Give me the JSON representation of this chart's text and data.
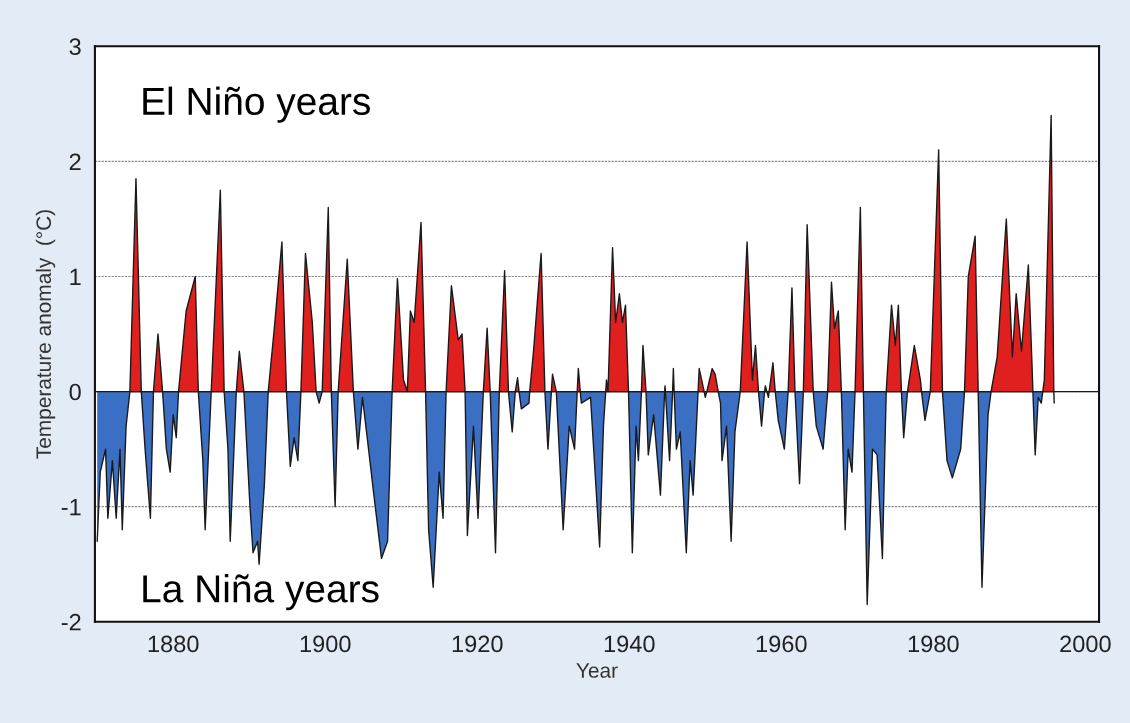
{
  "chart_data": {
    "type": "area",
    "xlabel": "Year",
    "ylabel": "Temperature anomaly  (°C)",
    "annotations": [
      "El Niño years",
      "La Niña years"
    ],
    "xlim": [
      1869.7,
      2001.8
    ],
    "ylim": [
      -2,
      3
    ],
    "xticks": [
      1880,
      1900,
      1920,
      1940,
      1960,
      1980,
      2000
    ],
    "yticks": [
      -2,
      -1,
      0,
      1,
      2,
      3
    ],
    "grid": "y",
    "series": [
      {
        "color": "#e0201e",
        "x": [
          1874.3,
          1875.1,
          1875.8,
          1877.4,
          1878.0,
          1878.6,
          1880.7,
          1881.7,
          1882.9,
          1883.3,
          1885.0,
          1886.2,
          1886.7,
          1888.3,
          1888.7,
          1889.3,
          1892.5,
          1893.3,
          1894.3,
          1894.9,
          1896.8,
          1897.4,
          1898.3,
          1898.8,
          1899.6,
          1900.4,
          1900.8,
          1901.7,
          1902.9,
          1903.7,
          1908.8,
          1909.5,
          1910.3,
          1910.8,
          1911.2,
          1911.7,
          1912.6,
          1913.2,
          1915.9,
          1916.6,
          1917.5,
          1918.0,
          1918.4,
          1920.8,
          1921.3,
          1921.7,
          1922.9,
          1923.6,
          1924.1,
          1925.0,
          1925.3,
          1925.5,
          1926.9,
          1927.4,
          1928.4,
          1928.9,
          1929.75,
          1929.9,
          1930.4,
          1933.15,
          1933.3,
          1933.55,
          1936.9,
          1937.0,
          1937.2,
          1937.8,
          1938.2,
          1938.7,
          1939.1,
          1939.5,
          1939.9,
          1941.6,
          1941.8,
          1942.2,
          1944.65,
          1944.7,
          1944.75,
          1945.7,
          1945.8,
          1945.9,
          1949.05,
          1949.2,
          1949.85,
          1950.2,
          1950.9,
          1951.3,
          1951.7,
          1954.6,
          1955.5,
          1956.2,
          1956.6,
          1957.0,
          1957.8,
          1957.9,
          1958.1,
          1958.4,
          1958.9,
          1959.2,
          1960.9,
          1961.4,
          1961.8,
          1962.9,
          1963.4,
          1964.2,
          1966.1,
          1966.6,
          1967.0,
          1967.5,
          1967.9,
          1969.7,
          1970.4,
          1970.8,
          1973.8,
          1974.5,
          1975.0,
          1975.4,
          1975.8,
          1976.6,
          1977.5,
          1978.3,
          1978.45,
          1979.6,
          1980.7,
          1981.2,
          1984.1,
          1984.6,
          1985.5,
          1985.9,
          1987.6,
          1988.4,
          1989.6,
          1990.4,
          1990.9,
          1991.6,
          1992.5,
          1993.0,
          1993.1,
          1994.4,
          1994.6,
          1995.5,
          1995.85
        ],
        "values": [
          0,
          1.85,
          0,
          0,
          0.5,
          0,
          0,
          0.7,
          1.0,
          0,
          0,
          1.75,
          0,
          0,
          0.35,
          0,
          0,
          0.55,
          1.3,
          0,
          0,
          1.2,
          0.6,
          0,
          0,
          1.6,
          0,
          0,
          1.15,
          0,
          0,
          0.98,
          0.1,
          0,
          0.7,
          0.6,
          1.47,
          0,
          0,
          0.92,
          0.45,
          0.5,
          0,
          0,
          0.55,
          0,
          0,
          1.05,
          0,
          0,
          0.12,
          0,
          0,
          0.35,
          1.2,
          0,
          0,
          0.15,
          0,
          0,
          0.2,
          0,
          0,
          0.1,
          0,
          1.25,
          0.6,
          0.85,
          0.6,
          0.75,
          0,
          0,
          0.4,
          0,
          0,
          0.05,
          0,
          0,
          0.2,
          0,
          0,
          0.2,
          0,
          0,
          0.2,
          0.15,
          0,
          0,
          1.3,
          0.1,
          0.4,
          0,
          0,
          0.05,
          0,
          0,
          0.25,
          0,
          0,
          0.9,
          0,
          0,
          1.45,
          0,
          0,
          0.95,
          0.55,
          0.7,
          0,
          0,
          1.6,
          0,
          0,
          0.75,
          0.4,
          0.75,
          0,
          0,
          0.4,
          0.1,
          0,
          0,
          2.1,
          0,
          0,
          1.0,
          1.35,
          0,
          0,
          0.3,
          1.5,
          0.3,
          0.85,
          0.35,
          1.1,
          0.2,
          0,
          0,
          0.1,
          2.4,
          0
        ]
      },
      {
        "color": "#3a6fc4",
        "x": [
          1870.0,
          1870.4,
          1871.1,
          1871.4,
          1872.0,
          1872.5,
          1873.0,
          1873.3,
          1873.8,
          1874.3,
          1875.8,
          1876.3,
          1877.0,
          1877.4,
          1878.6,
          1879.1,
          1879.6,
          1880.0,
          1880.4,
          1880.7,
          1883.3,
          1883.9,
          1884.2,
          1885.0,
          1886.7,
          1887.2,
          1887.5,
          1888.3,
          1889.3,
          1890.1,
          1890.5,
          1891.1,
          1891.3,
          1892.0,
          1892.5,
          1894.9,
          1895.4,
          1895.9,
          1896.4,
          1896.8,
          1898.8,
          1899.2,
          1899.6,
          1900.8,
          1901.3,
          1901.7,
          1903.7,
          1904.3,
          1904.9,
          1905.7,
          1906.4,
          1907.4,
          1908.2,
          1908.8,
          1910.8,
          1913.2,
          1913.6,
          1914.2,
          1915.0,
          1915.5,
          1915.9,
          1918.4,
          1918.7,
          1919.5,
          1920.1,
          1920.8,
          1921.7,
          1922.4,
          1922.9,
          1924.1,
          1924.6,
          1925.0,
          1925.5,
          1925.8,
          1926.8,
          1926.9,
          1928.9,
          1929.3,
          1929.75,
          1930.4,
          1931.3,
          1932.1,
          1932.8,
          1933.15,
          1933.55,
          1933.7,
          1934.9,
          1936.1,
          1936.6,
          1936.9,
          1937.2,
          1939.9,
          1940.4,
          1940.9,
          1941.2,
          1941.6,
          1942.2,
          1942.5,
          1943.2,
          1944.1,
          1944.65,
          1944.75,
          1945.3,
          1945.7,
          1945.9,
          1946.2,
          1946.7,
          1947.5,
          1948.0,
          1948.4,
          1949.05,
          1949.85,
          1950.0,
          1950.2,
          1951.7,
          1952.0,
          1952.2,
          1952.8,
          1953.4,
          1953.9,
          1954.6,
          1957.0,
          1957.4,
          1957.8,
          1958.1,
          1958.3,
          1958.4,
          1959.2,
          1959.6,
          1960.4,
          1960.9,
          1961.8,
          1962.4,
          1962.9,
          1964.2,
          1964.6,
          1965.5,
          1966.1,
          1967.9,
          1968.4,
          1968.8,
          1969.3,
          1969.7,
          1970.8,
          1971.3,
          1972.0,
          1972.6,
          1973.3,
          1973.8,
          1975.8,
          1976.1,
          1976.6,
          1978.45,
          1978.9,
          1979.6,
          1981.2,
          1981.8,
          1982.5,
          1983.6,
          1984.1,
          1985.9,
          1986.4,
          1987.2,
          1987.6,
          1993.1,
          1993.4,
          1993.8,
          1994.2,
          1994.4,
          1995.85,
          1995.9
        ],
        "values": [
          -1.3,
          -0.7,
          -0.5,
          -1.1,
          -0.6,
          -1.1,
          -0.5,
          -1.2,
          -0.3,
          0,
          0,
          -0.5,
          -1.1,
          0,
          0,
          -0.5,
          -0.7,
          -0.2,
          -0.4,
          0,
          0,
          -0.6,
          -1.2,
          0,
          0,
          -0.5,
          -1.3,
          0,
          0,
          -1.0,
          -1.4,
          -1.3,
          -1.5,
          -0.8,
          0,
          0,
          -0.65,
          -0.4,
          -0.6,
          0,
          0,
          -0.1,
          0,
          0,
          -1.0,
          0,
          0,
          -0.5,
          -0.05,
          -0.5,
          -0.9,
          -1.45,
          -1.3,
          0,
          0,
          0,
          -1.2,
          -1.7,
          -0.7,
          -1.1,
          0,
          0,
          -1.25,
          -0.3,
          -1.1,
          0,
          0,
          -1.4,
          0,
          0,
          -0.35,
          0,
          0,
          -0.15,
          -0.1,
          0,
          0,
          -0.5,
          0,
          0,
          -1.2,
          -0.3,
          -0.5,
          0,
          0,
          -0.1,
          -0.05,
          -1.35,
          -0.3,
          0,
          0,
          0,
          -1.4,
          -0.3,
          -0.6,
          0,
          0,
          -0.55,
          -0.2,
          -0.9,
          0,
          0,
          -0.6,
          0,
          0,
          -0.5,
          -0.35,
          -1.4,
          -0.6,
          -0.9,
          0,
          0,
          -0.05,
          0,
          0,
          -0.1,
          -0.6,
          -0.3,
          -1.3,
          -0.35,
          0,
          0,
          -0.3,
          0,
          0,
          -0.05,
          0,
          0,
          -0.25,
          -0.5,
          0,
          0,
          -0.8,
          0,
          0,
          -0.3,
          -0.5,
          0,
          0,
          -1.2,
          -0.5,
          -0.7,
          0,
          0,
          -1.85,
          -0.5,
          -0.55,
          -1.45,
          0,
          0,
          -0.4,
          0,
          0,
          -0.25,
          0,
          0,
          -0.6,
          -0.75,
          -0.5,
          0,
          0,
          -1.7,
          -0.2,
          0,
          0,
          -0.55,
          -0.05,
          -0.1,
          0,
          0,
          -0.1
        ]
      }
    ]
  }
}
